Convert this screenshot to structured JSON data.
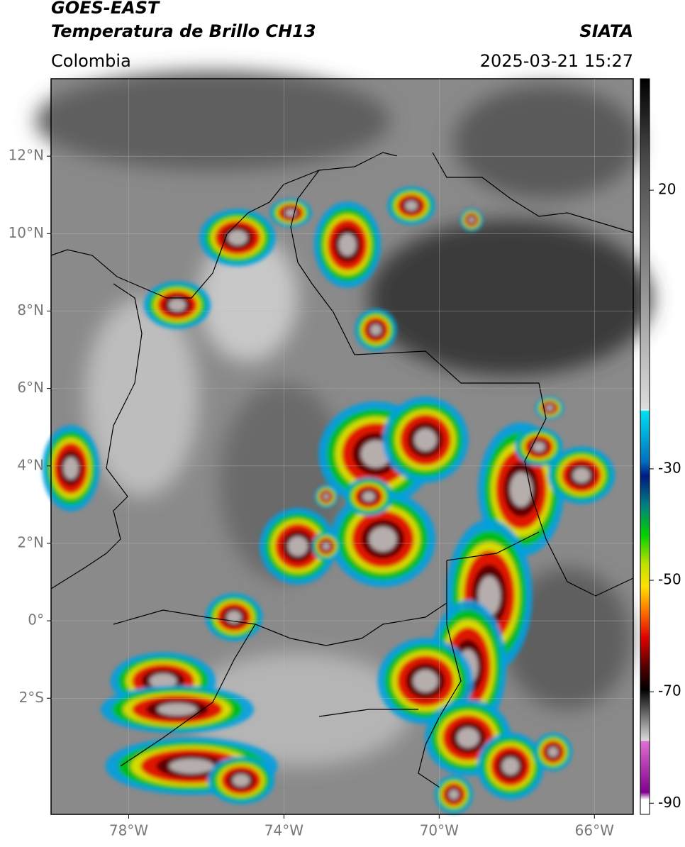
{
  "header": {
    "title": "GOES-EAST",
    "subtitle": "Temperatura de Brillo CH13",
    "source": "SIATA",
    "region": "Colombia",
    "datetime": "2025-03-21 15:27"
  },
  "map": {
    "lonlim": [
      -80,
      -65
    ],
    "latlim": [
      -5,
      14
    ],
    "lonticks": [
      {
        "value": -78,
        "label": "78°W"
      },
      {
        "value": -74,
        "label": "74°W"
      },
      {
        "value": -70,
        "label": "70°W"
      },
      {
        "value": -66,
        "label": "66°W"
      }
    ],
    "latticks": [
      {
        "value": 12,
        "label": "12°N"
      },
      {
        "value": 10,
        "label": "10°N"
      },
      {
        "value": 8,
        "label": "8°N"
      },
      {
        "value": 6,
        "label": "6°N"
      },
      {
        "value": 4,
        "label": "4°N"
      },
      {
        "value": 2,
        "label": "2°N"
      },
      {
        "value": 0,
        "label": "0°"
      },
      {
        "value": -2,
        "label": "2°S"
      }
    ]
  },
  "colorbar": {
    "lim": [
      -92,
      40
    ],
    "ticks": [
      20,
      -30,
      -50,
      -70,
      -90
    ]
  }
}
